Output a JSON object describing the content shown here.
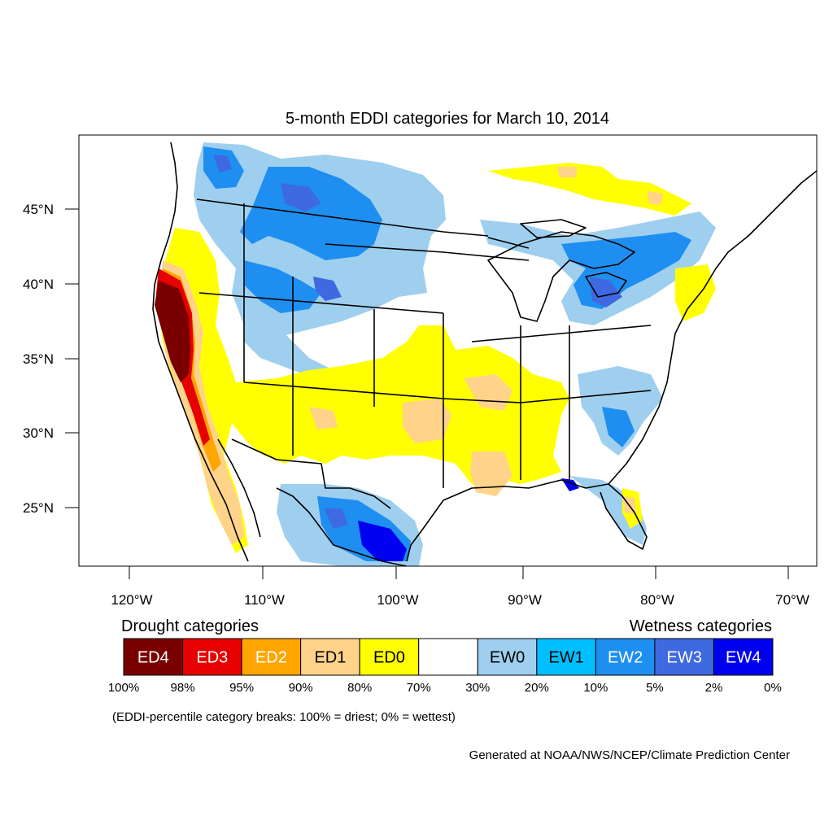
{
  "title": "5-month EDDI categories for March 10, 2014",
  "lat_labels": [
    "45°N",
    "40°N",
    "35°N",
    "30°N",
    "25°N"
  ],
  "lon_labels": [
    "120°W",
    "110°W",
    "100°W",
    "90°W",
    "80°W",
    "70°W"
  ],
  "legend": {
    "drought_heading": "Drought categories",
    "wetness_heading": "Wetness categories",
    "categories": [
      {
        "label": "ED4",
        "color": "#7a0000",
        "text_color": "#ffffff"
      },
      {
        "label": "ED3",
        "color": "#e60000",
        "text_color": "#ffffff"
      },
      {
        "label": "ED2",
        "color": "#ffa500",
        "text_color": "#ffffff"
      },
      {
        "label": "ED1",
        "color": "#ffd38a",
        "text_color": "#000000"
      },
      {
        "label": "ED0",
        "color": "#ffff00",
        "text_color": "#000000"
      },
      {
        "label": "",
        "color": "#ffffff",
        "text_color": "#000000"
      },
      {
        "label": "EW0",
        "color": "#9fcfee",
        "text_color": "#000000"
      },
      {
        "label": "EW1",
        "color": "#00bfff",
        "text_color": "#000000"
      },
      {
        "label": "EW2",
        "color": "#1e8ff0",
        "text_color": "#ffffff"
      },
      {
        "label": "EW3",
        "color": "#3f69e0",
        "text_color": "#ffffff"
      },
      {
        "label": "EW4",
        "color": "#0000f0",
        "text_color": "#ffffff"
      }
    ],
    "breaks": [
      "100%",
      "98%",
      "95%",
      "90%",
      "80%",
      "70%",
      "30%",
      "20%",
      "10%",
      "5%",
      "2%",
      "0%"
    ],
    "note": "(EDDI-percentile category breaks: 100% = driest; 0% = wettest)"
  },
  "credit": "Generated at NOAA/NWS/NCEP/Climate Prediction Center"
}
